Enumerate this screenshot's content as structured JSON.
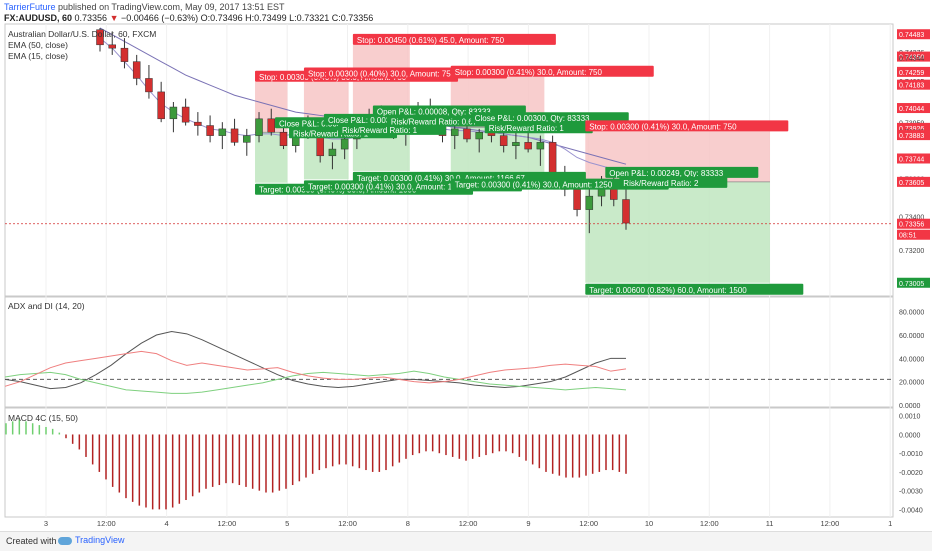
{
  "header": {
    "author": "TarrierFuture",
    "publish_text": "published on TradingView.com, May 09, 2017 13:51 EST",
    "symbol": "FX:AUDUSD, 60",
    "last": "0.73356",
    "change_arrow": "▼",
    "change": "−0.00466 (−0.63%)",
    "ohlc": "O:0.73496 H:0.73499 L:0.73321 C:0.73356"
  },
  "legend": {
    "instrument": "Australian Dollar/U.S. Dollar, 60, FXCM",
    "ema50": "EMA (50, close)",
    "ema15": "EMA (15, close)"
  },
  "footer": {
    "created": "Created with",
    "brand": "TradingView"
  },
  "colors": {
    "up": "#3c9a3c",
    "down": "#d32f2f",
    "stop_label": "#f23645",
    "target_label": "#1f9a3c",
    "stop_zone": "#f7c6c6",
    "target_zone": "#bfe6bf",
    "ema": "#7a72b5",
    "adx": "#555555",
    "di_plus": "#7fd07f",
    "di_minus": "#ef7f7f",
    "macd_pos": "#6fcf6f",
    "macd_neg": "#b22222"
  },
  "chart_data": [
    {
      "type": "candlestick",
      "title": "Australian Dollar/U.S. Dollar, 60, FXCM",
      "ylim": [
        0.7295,
        0.7452
      ],
      "y_ticks": [
        "0.74483",
        "0.74376",
        "0.74350",
        "0.74344",
        "0.74259",
        "0.74205",
        "0.74183",
        "0.74050",
        "0.74044",
        "0.73959",
        "0.73926",
        "0.73905",
        "0.73883",
        "0.73750",
        "0.73744",
        "0.73626",
        "0.73605",
        "0.73400",
        "0.73356",
        "08:51",
        "0.73200",
        "0.73005"
      ],
      "last_price": 0.73356,
      "countdown": "08:51",
      "x_ticks": [
        "3",
        "12:00",
        "4",
        "12:00",
        "5",
        "12:00",
        "8",
        "12:00",
        "9",
        "12:00",
        "10",
        "12:00",
        "11",
        "12:00",
        "1"
      ],
      "candles": [
        [
          0.7451,
          0.7452,
          0.7438,
          0.7442
        ],
        [
          0.7442,
          0.745,
          0.7436,
          0.744
        ],
        [
          0.744,
          0.7446,
          0.7428,
          0.7432
        ],
        [
          0.7432,
          0.7436,
          0.7418,
          0.7422
        ],
        [
          0.7422,
          0.743,
          0.741,
          0.7414
        ],
        [
          0.7414,
          0.742,
          0.7396,
          0.7398
        ],
        [
          0.7398,
          0.7408,
          0.739,
          0.7405
        ],
        [
          0.7405,
          0.741,
          0.7394,
          0.7396
        ],
        [
          0.7396,
          0.7402,
          0.7388,
          0.7394
        ],
        [
          0.7394,
          0.74,
          0.7384,
          0.7388
        ],
        [
          0.7388,
          0.7396,
          0.738,
          0.7392
        ],
        [
          0.7392,
          0.7398,
          0.7382,
          0.7384
        ],
        [
          0.7384,
          0.7392,
          0.7376,
          0.7388
        ],
        [
          0.7388,
          0.7402,
          0.7384,
          0.7398
        ],
        [
          0.7398,
          0.7404,
          0.7388,
          0.739
        ],
        [
          0.739,
          0.7396,
          0.738,
          0.7382
        ],
        [
          0.7382,
          0.7394,
          0.7378,
          0.7392
        ],
        [
          0.7392,
          0.74,
          0.7386,
          0.7388
        ],
        [
          0.7388,
          0.7392,
          0.7372,
          0.7376
        ],
        [
          0.7376,
          0.7384,
          0.7368,
          0.738
        ],
        [
          0.738,
          0.739,
          0.7374,
          0.7386
        ],
        [
          0.7386,
          0.7396,
          0.738,
          0.7394
        ],
        [
          0.7394,
          0.7404,
          0.739,
          0.74
        ],
        [
          0.74,
          0.7406,
          0.7392,
          0.7396
        ],
        [
          0.7396,
          0.7402,
          0.7386,
          0.739
        ],
        [
          0.739,
          0.7398,
          0.7382,
          0.7394
        ],
        [
          0.7394,
          0.7408,
          0.739,
          0.7404
        ],
        [
          0.7404,
          0.741,
          0.7394,
          0.7398
        ],
        [
          0.7398,
          0.7404,
          0.7384,
          0.7388
        ],
        [
          0.7388,
          0.7396,
          0.738,
          0.7392
        ],
        [
          0.7392,
          0.7398,
          0.7384,
          0.7386
        ],
        [
          0.7386,
          0.7392,
          0.7378,
          0.739
        ],
        [
          0.739,
          0.7396,
          0.7384,
          0.7388
        ],
        [
          0.7388,
          0.7394,
          0.7378,
          0.7382
        ],
        [
          0.7382,
          0.739,
          0.7374,
          0.7384
        ],
        [
          0.7384,
          0.7392,
          0.7378,
          0.738
        ],
        [
          0.738,
          0.7388,
          0.737,
          0.7384
        ],
        [
          0.7384,
          0.7388,
          0.7362,
          0.7366
        ],
        [
          0.7366,
          0.737,
          0.7352,
          0.7356
        ],
        [
          0.7356,
          0.7362,
          0.734,
          0.7344
        ],
        [
          0.7344,
          0.7356,
          0.733,
          0.7352
        ],
        [
          0.7352,
          0.7364,
          0.7346,
          0.736
        ],
        [
          0.736,
          0.7364,
          0.7346,
          0.735
        ],
        [
          0.735,
          0.7356,
          0.7332,
          0.7336
        ]
      ],
      "ema_15": [
        0.7446,
        0.744,
        0.7432,
        0.7424,
        0.7415,
        0.7407,
        0.7402,
        0.7398,
        0.7395,
        0.7392,
        0.7391,
        0.7389,
        0.7388,
        0.7389,
        0.7389,
        0.7388,
        0.7389,
        0.7389,
        0.7387,
        0.7386,
        0.7386,
        0.7387,
        0.7389,
        0.739,
        0.739,
        0.739,
        0.7392,
        0.7392,
        0.7392,
        0.7391,
        0.7391,
        0.739,
        0.739,
        0.7389,
        0.7388,
        0.7387,
        0.7386,
        0.7384,
        0.738,
        0.7375,
        0.7372,
        0.737,
        0.7368,
        0.7365
      ],
      "ema_50": [
        0.7452,
        0.7448,
        0.7444,
        0.744,
        0.7436,
        0.7432,
        0.7428,
        0.7424,
        0.7421,
        0.7418,
        0.7415,
        0.7412,
        0.741,
        0.7408,
        0.7406,
        0.7404,
        0.7402,
        0.7401,
        0.74,
        0.7399,
        0.7398,
        0.7397,
        0.7397,
        0.7396,
        0.7396,
        0.7395,
        0.7395,
        0.7394,
        0.7394,
        0.7393,
        0.7392,
        0.7391,
        0.739,
        0.7389,
        0.7388,
        0.7387,
        0.7385,
        0.7383,
        0.7381,
        0.7379,
        0.7377,
        0.7375,
        0.7373,
        0.7371
      ],
      "positions": [
        {
          "i0": 13,
          "i1": 15,
          "entry": 0.739,
          "stop": 0.742,
          "target": 0.736,
          "stop_text": "Stop: 0.00300 (0.40%) 30.0, Amount: 750",
          "target_text": "Target: 0.00300 (0.40%) 30.0, Amount: 1000",
          "pnl_text": "Close P&L: 0.00300, Qty: 83333",
          "rr_text": "Risk/Reward Ratio: 1",
          "closed": true
        },
        {
          "i0": 17,
          "i1": 20,
          "entry": 0.7392,
          "stop": 0.7422,
          "target": 0.7362,
          "stop_text": "Stop: 0.00300 (0.40%) 30.0, Amount: 750",
          "target_text": "Target: 0.00300 (0.41%) 30.0, Amount: 1250",
          "pnl_text": "Close P&L: 0.00300, Qty: 83333",
          "rr_text": "Risk/Reward Ratio: 1",
          "closed": true
        },
        {
          "i0": 21,
          "i1": 25,
          "entry": 0.7397,
          "stop": 0.7442,
          "target": 0.7367,
          "stop_text": "Stop: 0.00450 (0.61%) 45.0, Amount: 750",
          "target_text": "Target: 0.00300 (0.41%) 30.0, Amount: 1166.67",
          "pnl_text": "Open P&L: 0.00008, Qty: 83333",
          "rr_text": "Risk/Reward Ratio: 0.67",
          "closed": false
        },
        {
          "i0": 29,
          "i1": 36,
          "entry": 0.7393,
          "stop": 0.7423,
          "target": 0.7363,
          "stop_text": "Stop: 0.00300 (0.41%) 30.0, Amount: 750",
          "target_text": "Target: 0.00300 (0.41%) 30.0, Amount: 1250",
          "pnl_text": "Close P&L: 0.00300, Qty: 83333",
          "rr_text": "Risk/Reward Ratio: 1",
          "closed": true
        },
        {
          "i0": 40,
          "i1": 52,
          "entry": 0.73605,
          "stop": 0.73905,
          "target": 0.73005,
          "stop_text": "Stop: 0.00300 (0.41%) 30.0, Amount: 750",
          "target_text": "Target: 0.00600 (0.82%) 60.0, Amount: 1500",
          "pnl_text": "Open P&L: 0.00249, Qty: 83333",
          "rr_text": "Risk/Reward Ratio: 2",
          "closed": false
        }
      ]
    },
    {
      "type": "line",
      "title": "ADX and DI (14, 20)",
      "ylim": [
        0,
        90
      ],
      "y_ticks": [
        "80.0000",
        "60.0000",
        "40.0000",
        "20.0000",
        "0.0000"
      ],
      "reference_level": 22,
      "series": [
        {
          "name": "ADX",
          "values": [
            22,
            20,
            17,
            14,
            15,
            19,
            26,
            34,
            44,
            53,
            60,
            63,
            61,
            56,
            50,
            44,
            38,
            32,
            26,
            21,
            18,
            16,
            15,
            16,
            18,
            20,
            22,
            22,
            21,
            20,
            19,
            17,
            16,
            15,
            16,
            18,
            20,
            24,
            30,
            36,
            40,
            40
          ]
        },
        {
          "name": "+DI",
          "values": [
            24,
            26,
            27,
            28,
            26,
            22,
            19,
            16,
            13,
            12,
            11,
            10,
            10,
            11,
            13,
            15,
            17,
            19,
            22,
            25,
            27,
            28,
            27,
            26,
            25,
            26,
            27,
            29,
            27,
            24,
            22,
            20,
            18,
            17,
            16,
            15,
            14,
            13,
            14,
            15,
            14,
            13
          ]
        },
        {
          "name": "−DI",
          "values": [
            16,
            20,
            26,
            32,
            36,
            38,
            40,
            42,
            44,
            46,
            44,
            38,
            34,
            36,
            34,
            32,
            30,
            31,
            32,
            28,
            25,
            23,
            22,
            22,
            23,
            24,
            22,
            20,
            19,
            20,
            22,
            25,
            28,
            30,
            31,
            32,
            34,
            35,
            34,
            33,
            29,
            31
          ]
        }
      ]
    },
    {
      "type": "bar",
      "title": "MACD 4C (15, 50)",
      "ylim": [
        -0.0043,
        0.0012
      ],
      "y_ticks": [
        "0.0010",
        "0.0000",
        "-0.0010",
        "-0.0020",
        "-0.0030",
        "-0.0040"
      ],
      "values": [
        0.0006,
        0.0007,
        0.0008,
        0.0007,
        0.0006,
        0.0005,
        0.0004,
        0.0003,
        0.0001,
        -0.0002,
        -0.0005,
        -0.0008,
        -0.0012,
        -0.0016,
        -0.002,
        -0.0024,
        -0.0028,
        -0.0031,
        -0.0034,
        -0.0036,
        -0.0038,
        -0.0039,
        -0.004,
        -0.004,
        -0.004,
        -0.0039,
        -0.0037,
        -0.0035,
        -0.0033,
        -0.0031,
        -0.0029,
        -0.0028,
        -0.0027,
        -0.0026,
        -0.0026,
        -0.0027,
        -0.0028,
        -0.0029,
        -0.003,
        -0.0031,
        -0.0031,
        -0.003,
        -0.0029,
        -0.0027,
        -0.0025,
        -0.0023,
        -0.0021,
        -0.0019,
        -0.0018,
        -0.0017,
        -0.0016,
        -0.0016,
        -0.0017,
        -0.0018,
        -0.0019,
        -0.002,
        -0.002,
        -0.0019,
        -0.0017,
        -0.0015,
        -0.0013,
        -0.0011,
        -0.001,
        -0.0009,
        -0.0009,
        -0.001,
        -0.0011,
        -0.0012,
        -0.0013,
        -0.0014,
        -0.0013,
        -0.0012,
        -0.0011,
        -0.001,
        -0.0009,
        -0.0009,
        -0.001,
        -0.0012,
        -0.0014,
        -0.0016,
        -0.0018,
        -0.002,
        -0.0021,
        -0.0022,
        -0.0023,
        -0.0023,
        -0.0023,
        -0.0022,
        -0.0021,
        -0.002,
        -0.0019,
        -0.0019,
        -0.002,
        -0.0021
      ]
    }
  ]
}
